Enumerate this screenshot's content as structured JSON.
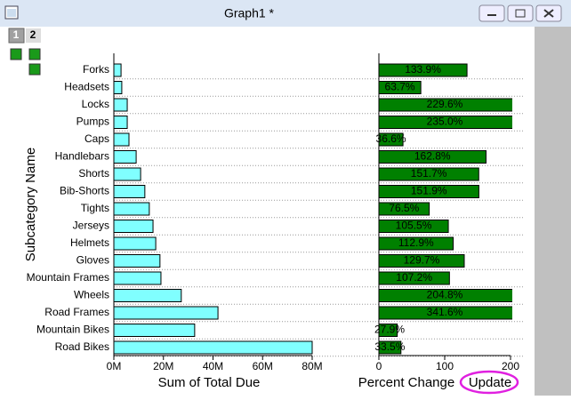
{
  "window": {
    "title": "Graph1 *"
  },
  "layer_tabs": [
    "1",
    "2"
  ],
  "update_button": "Update",
  "chart_data": [
    {
      "type": "bar",
      "orientation": "horizontal",
      "ylabel": "Subcategory Name",
      "xlabel": "Sum of Total Due",
      "categories": [
        "Forks",
        "Headsets",
        "Locks",
        "Pumps",
        "Caps",
        "Handlebars",
        "Shorts",
        "Bib-Shorts",
        "Tights",
        "Jerseys",
        "Helmets",
        "Gloves",
        "Mountain Frames",
        "Wheels",
        "Road Frames",
        "Mountain Bikes",
        "Road Bikes"
      ],
      "values": [
        2.9,
        3.2,
        5.4,
        5.4,
        6.1,
        9.0,
        10.8,
        12.5,
        14.3,
        15.8,
        16.9,
        18.6,
        19.0,
        27.2,
        42.0,
        32.6,
        80.0
      ],
      "color": "#80ffff",
      "xlim": [
        0,
        80
      ],
      "xticks": [
        {
          "value": 0,
          "label": "0M"
        },
        {
          "value": 20,
          "label": "20M"
        },
        {
          "value": 40,
          "label": "40M"
        },
        {
          "value": 60,
          "label": "60M"
        },
        {
          "value": 80,
          "label": "80M"
        }
      ],
      "grid": true
    },
    {
      "type": "bar",
      "orientation": "horizontal",
      "xlabel": "Percent Change",
      "values": [
        133.9,
        63.7,
        229.6,
        235.0,
        36.6,
        162.8,
        151.7,
        151.9,
        76.5,
        105.5,
        112.9,
        129.7,
        107.2,
        204.8,
        341.6,
        27.9,
        33.5
      ],
      "value_labels": [
        "133.9%",
        "63.7%",
        "229.6%",
        "235.0%",
        "36.6%",
        "162.8%",
        "151.7%",
        "151.9%",
        "76.5%",
        "105.5%",
        "112.9%",
        "129.7%",
        "107.2%",
        "204.8%",
        "341.6%",
        "27.9%",
        "33.5%"
      ],
      "color": "#008000",
      "xlim": [
        0,
        200
      ],
      "xticks": [
        0,
        100,
        200
      ]
    }
  ]
}
